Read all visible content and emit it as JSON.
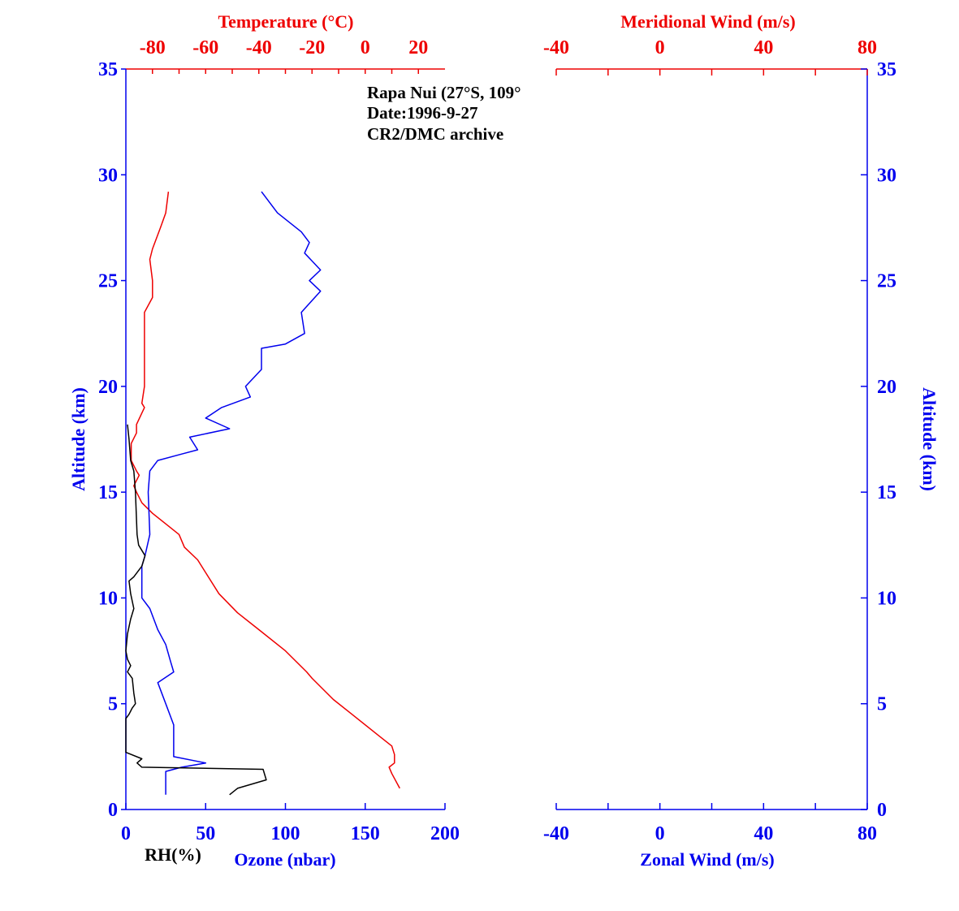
{
  "colors": {
    "blue": "#0000ee",
    "red": "#ee0000",
    "black": "#000000"
  },
  "annotation": [
    "Rapa Nui (27°S, 109°",
    "Date:1996-9-27",
    "CR2/DMC archive"
  ],
  "chart_data": [
    {
      "type": "line",
      "panel": "left",
      "x_bottom": {
        "label": "Ozone (nbar)",
        "range": [
          0,
          200
        ],
        "ticks": [
          0,
          50,
          100,
          150,
          200
        ]
      },
      "x_bottom_secondary_label": "RH(%)",
      "x_top": {
        "label": "Temperature (°C)",
        "range": [
          -90,
          30
        ],
        "ticks": [
          -80,
          -60,
          -40,
          -20,
          0,
          20
        ]
      },
      "y": {
        "label": "Altitude (km)",
        "range": [
          0,
          35
        ],
        "ticks": [
          0,
          5,
          10,
          15,
          20,
          25,
          30,
          35
        ]
      },
      "grid": false,
      "series": [
        {
          "name": "Temperature",
          "axis": "top",
          "color": "red",
          "points": [
            [
              -74,
              29.2
            ],
            [
              -75,
              28.2
            ],
            [
              -77,
              27.5
            ],
            [
              -80,
              26.5
            ],
            [
              -81,
              26
            ],
            [
              -80,
              25
            ],
            [
              -80,
              24.2
            ],
            [
              -83,
              23.5
            ],
            [
              -83,
              22
            ],
            [
              -83,
              21
            ],
            [
              -83,
              20
            ],
            [
              -84,
              19.2
            ],
            [
              -83,
              19
            ],
            [
              -86,
              18.2
            ],
            [
              -86,
              17.8
            ],
            [
              -88,
              17.3
            ],
            [
              -88,
              16.8
            ],
            [
              -88,
              16.5
            ],
            [
              -86,
              16
            ],
            [
              -85,
              15.8
            ],
            [
              -87,
              15.3
            ],
            [
              -86,
              15
            ],
            [
              -84,
              14.5
            ],
            [
              -80,
              14
            ],
            [
              -75,
              13.5
            ],
            [
              -70,
              13
            ],
            [
              -68,
              12.4
            ],
            [
              -63,
              11.8
            ],
            [
              -59,
              11
            ],
            [
              -55,
              10.2
            ],
            [
              -48,
              9.3
            ],
            [
              -40,
              8.5
            ],
            [
              -30,
              7.5
            ],
            [
              -22,
              6.5
            ],
            [
              -20,
              6.2
            ],
            [
              -12,
              5.2
            ],
            [
              -5,
              4.5
            ],
            [
              5,
              3.5
            ],
            [
              10,
              3
            ],
            [
              11,
              2.6
            ],
            [
              11,
              2.2
            ],
            [
              9,
              2
            ],
            [
              10,
              1.7
            ],
            [
              13,
              1
            ]
          ]
        },
        {
          "name": "Ozone",
          "axis": "bottom",
          "color": "blue",
          "points": [
            [
              85,
              29.2
            ],
            [
              95,
              28.2
            ],
            [
              110,
              27.3
            ],
            [
              115,
              26.8
            ],
            [
              112,
              26.3
            ],
            [
              122,
              25.5
            ],
            [
              115,
              25
            ],
            [
              122,
              24.5
            ],
            [
              110,
              23.5
            ],
            [
              112,
              22.5
            ],
            [
              100,
              22
            ],
            [
              85,
              21.8
            ],
            [
              85,
              20.8
            ],
            [
              75,
              20
            ],
            [
              78,
              19.5
            ],
            [
              60,
              19
            ],
            [
              50,
              18.5
            ],
            [
              65,
              18
            ],
            [
              40,
              17.6
            ],
            [
              45,
              17
            ],
            [
              35,
              16.8
            ],
            [
              20,
              16.5
            ],
            [
              15,
              16
            ],
            [
              14,
              15
            ],
            [
              15,
              13
            ],
            [
              12,
              12
            ],
            [
              10,
              11.5
            ],
            [
              10,
              10
            ],
            [
              15,
              9.5
            ],
            [
              20,
              8.5
            ],
            [
              25,
              7.8
            ],
            [
              28,
              7
            ],
            [
              30,
              6.5
            ],
            [
              20,
              6
            ],
            [
              25,
              5
            ],
            [
              30,
              4
            ],
            [
              30,
              3
            ],
            [
              30,
              2.5
            ],
            [
              50,
              2.2
            ],
            [
              35,
              2
            ],
            [
              25,
              1.8
            ],
            [
              25,
              0.7
            ]
          ]
        },
        {
          "name": "RH",
          "axis": "bottom",
          "color": "black",
          "points": [
            [
              1,
              18.2
            ],
            [
              2,
              17.5
            ],
            [
              3,
              16.5
            ],
            [
              5,
              16
            ],
            [
              6,
              15
            ],
            [
              7,
              13
            ],
            [
              8,
              12.5
            ],
            [
              12,
              12
            ],
            [
              10,
              11.5
            ],
            [
              5,
              11
            ],
            [
              2,
              10.8
            ],
            [
              3,
              10.2
            ],
            [
              5,
              9.5
            ],
            [
              3,
              9
            ],
            [
              1,
              8.3
            ],
            [
              0,
              7.5
            ],
            [
              1,
              7.1
            ],
            [
              3,
              6.8
            ],
            [
              1,
              6.5
            ],
            [
              4,
              6.2
            ],
            [
              5,
              5.5
            ],
            [
              6,
              5
            ],
            [
              4,
              4.8
            ],
            [
              2,
              4.5
            ],
            [
              0,
              4.3
            ],
            [
              0,
              3
            ],
            [
              0,
              2.7
            ],
            [
              10,
              2.4
            ],
            [
              7,
              2.2
            ],
            [
              10,
              2
            ],
            [
              86,
              1.9
            ],
            [
              88,
              1.4
            ],
            [
              70,
              1
            ],
            [
              65,
              0.7
            ]
          ]
        }
      ]
    },
    {
      "type": "line",
      "panel": "right",
      "x_bottom": {
        "label": "Zonal Wind (m/s)",
        "range": [
          -40,
          80
        ],
        "ticks": [
          -40,
          0,
          40,
          80
        ]
      },
      "x_top": {
        "label": "Meridional Wind (m/s)",
        "range": [
          -40,
          80
        ],
        "ticks": [
          -40,
          0,
          40,
          80
        ]
      },
      "y": {
        "label": "Altitude (km)",
        "range": [
          0,
          35
        ],
        "ticks": [
          0,
          5,
          10,
          15,
          20,
          25,
          30,
          35
        ]
      },
      "grid": false,
      "series": []
    }
  ]
}
